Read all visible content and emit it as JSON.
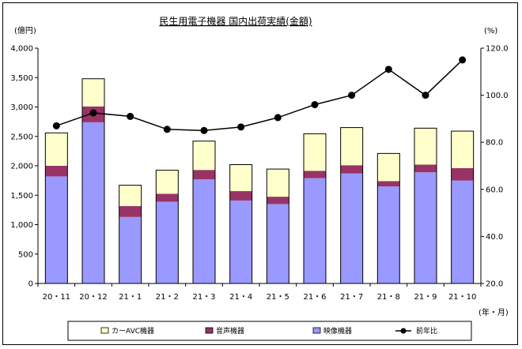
{
  "chart_data": {
    "type": "bar",
    "stacked": true,
    "title": "民生用電子機器 国内出荷実績(金額)",
    "left_unit": "(億円)",
    "right_unit": "(%)",
    "x_unit": "(年・月)",
    "categories": [
      "20・11",
      "20・12",
      "21・1",
      "21・2",
      "21・3",
      "21・4",
      "21・5",
      "21・6",
      "21・7",
      "21・8",
      "21・9",
      "21・10"
    ],
    "ylim": [
      0,
      4000
    ],
    "y_ticks": [
      "0",
      "500",
      "1,000",
      "1,500",
      "2,000",
      "2,500",
      "3,000",
      "3,500",
      "4,000"
    ],
    "y_tick_values": [
      0,
      500,
      1000,
      1500,
      2000,
      2500,
      3000,
      3500,
      4000
    ],
    "y2lim": [
      20,
      120
    ],
    "y2_ticks": [
      "20.0",
      "40.0",
      "60.0",
      "80.0",
      "100.0",
      "120.0"
    ],
    "y2_tick_values": [
      20,
      40,
      60,
      80,
      100,
      120
    ],
    "series": [
      {
        "name": "映像機器",
        "color": "#9999ff",
        "values": [
          1820,
          2740,
          1130,
          1390,
          1770,
          1410,
          1350,
          1790,
          1870,
          1650,
          1890,
          1750
        ]
      },
      {
        "name": "音声機器",
        "color": "#993366",
        "values": [
          180,
          270,
          185,
          135,
          160,
          160,
          125,
          125,
          140,
          90,
          130,
          210
        ]
      },
      {
        "name": "カーAVC機器",
        "color": "#ffffcc",
        "values": [
          560,
          470,
          355,
          400,
          490,
          450,
          470,
          630,
          640,
          470,
          620,
          630
        ]
      }
    ],
    "line_series": {
      "name": "前年比",
      "color": "#000000",
      "values": [
        87.0,
        92.5,
        91.0,
        85.5,
        85.0,
        86.5,
        90.5,
        96.0,
        100.0,
        111.0,
        100.0,
        115.0
      ]
    },
    "legend": [
      {
        "name": "カーAVC機器",
        "kind": "box",
        "color": "#ffffcc"
      },
      {
        "name": "音声機器",
        "kind": "box",
        "color": "#993366"
      },
      {
        "name": "映像機器",
        "kind": "box",
        "color": "#9999ff"
      },
      {
        "name": "前年比",
        "kind": "line",
        "color": "#000000"
      }
    ],
    "legend_position": "bottom",
    "grid": false
  }
}
